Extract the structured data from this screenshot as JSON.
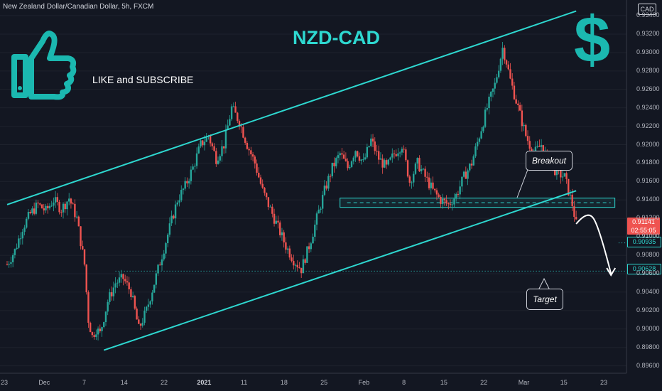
{
  "header": {
    "symbol_title": "New Zealand Dollar/Canadian Dollar, 5h, FXCM",
    "currency": "CAD"
  },
  "annotations": {
    "chart_title": "NZD-CAD",
    "like_text": "LIKE and SUBSCRIBE",
    "dollar_symbol": "$",
    "breakout_label": "Breakout",
    "target_label": "Target"
  },
  "price_tags": {
    "current_price": "0.91141",
    "countdown": "02:55:05",
    "level_1": "0.90935",
    "level_2": "0.90628"
  },
  "chart_data": {
    "type": "candlestick",
    "instrument": "NZDCAD",
    "interval": "5h",
    "y_ticks": [
      "0.93400",
      "0.93200",
      "0.93000",
      "0.92800",
      "0.92600",
      "0.92400",
      "0.92200",
      "0.92000",
      "0.91800",
      "0.91600",
      "0.91400",
      "0.91200",
      "0.91000",
      "0.90800",
      "0.90600",
      "0.90400",
      "0.90200",
      "0.90000",
      "0.89800",
      "0.89600"
    ],
    "ylim": [
      0.8952,
      0.9357
    ],
    "x_ticks": [
      "23",
      "Dec",
      "7",
      "14",
      "22",
      "2021",
      "11",
      "18",
      "25",
      "Feb",
      "8",
      "15",
      "22",
      "Mar",
      "15",
      "23"
    ],
    "bold_x_ticks": [
      "2021"
    ],
    "price_path": [
      [
        0,
        0.907
      ],
      [
        2,
        0.9085
      ],
      [
        4,
        0.911
      ],
      [
        6,
        0.9125
      ],
      [
        8,
        0.9135
      ],
      [
        10,
        0.9128
      ],
      [
        12,
        0.914
      ],
      [
        14,
        0.913
      ],
      [
        16,
        0.9142
      ],
      [
        18,
        0.912
      ],
      [
        20,
        0.907
      ],
      [
        21,
        0.901
      ],
      [
        22,
        0.8992
      ],
      [
        23,
        0.9
      ],
      [
        24,
        0.8995
      ],
      [
        26,
        0.903
      ],
      [
        28,
        0.905
      ],
      [
        30,
        0.9055
      ],
      [
        32,
        0.904
      ],
      [
        34,
        0.9
      ],
      [
        36,
        0.902
      ],
      [
        38,
        0.905
      ],
      [
        40,
        0.908
      ],
      [
        42,
        0.911
      ],
      [
        44,
        0.914
      ],
      [
        46,
        0.9155
      ],
      [
        48,
        0.9175
      ],
      [
        50,
        0.92
      ],
      [
        52,
        0.921
      ],
      [
        54,
        0.9185
      ],
      [
        56,
        0.92
      ],
      [
        58,
        0.924
      ],
      [
        60,
        0.9225
      ],
      [
        62,
        0.92
      ],
      [
        64,
        0.918
      ],
      [
        66,
        0.915
      ],
      [
        68,
        0.913
      ],
      [
        70,
        0.911
      ],
      [
        72,
        0.909
      ],
      [
        74,
        0.9075
      ],
      [
        76,
        0.9065
      ],
      [
        78,
        0.909
      ],
      [
        80,
        0.912
      ],
      [
        82,
        0.915
      ],
      [
        84,
        0.9175
      ],
      [
        86,
        0.919
      ],
      [
        88,
        0.9175
      ],
      [
        90,
        0.9195
      ],
      [
        92,
        0.918
      ],
      [
        94,
        0.9205
      ],
      [
        96,
        0.9185
      ],
      [
        98,
        0.9175
      ],
      [
        100,
        0.919
      ],
      [
        102,
        0.92
      ],
      [
        104,
        0.916
      ],
      [
        106,
        0.918
      ],
      [
        108,
        0.9165
      ],
      [
        110,
        0.915
      ],
      [
        112,
        0.914
      ],
      [
        114,
        0.9135
      ],
      [
        116,
        0.9145
      ],
      [
        118,
        0.9165
      ],
      [
        120,
        0.918
      ],
      [
        122,
        0.921
      ],
      [
        124,
        0.924
      ],
      [
        126,
        0.9265
      ],
      [
        128,
        0.9305
      ],
      [
        129,
        0.929
      ],
      [
        130,
        0.927
      ],
      [
        132,
        0.924
      ],
      [
        134,
        0.921
      ],
      [
        136,
        0.919
      ],
      [
        138,
        0.92
      ],
      [
        140,
        0.918
      ],
      [
        142,
        0.917
      ],
      [
        144,
        0.9165
      ],
      [
        145,
        0.915
      ],
      [
        146,
        0.9135
      ],
      [
        147,
        0.9114
      ]
    ],
    "channel": {
      "upper": {
        "x": [
          0,
          147
        ],
        "y": [
          0.9135,
          0.9345
        ]
      },
      "lower": {
        "x": [
          25,
          147
        ],
        "y": [
          0.8977,
          0.915
        ]
      }
    },
    "support_zone": [
      0.9132,
      0.9142
    ],
    "levels": [
      0.90935,
      0.90628
    ],
    "forecast_path": [
      [
        147,
        0.9114
      ],
      [
        150,
        0.912
      ],
      [
        153,
        0.91
      ],
      [
        156,
        0.906
      ]
    ]
  }
}
